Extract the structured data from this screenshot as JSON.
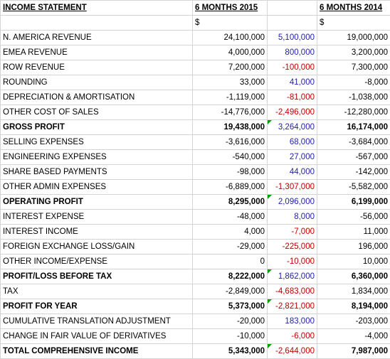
{
  "header": {
    "title": "INCOME STATEMENT",
    "col_2015": "6 MONTHS 2015",
    "col_2014": "6 MONTHS 2014",
    "currency_2015": "$",
    "currency_2014": "$"
  },
  "rows": [
    {
      "label": "N. AMERICA REVENUE",
      "v2015": "24,100,000",
      "adj": "5,100,000",
      "adj_sign": "pos",
      "v2014": "19,000,000",
      "bold": false,
      "flag": false
    },
    {
      "label": "EMEA REVENUE",
      "v2015": "4,000,000",
      "adj": "800,000",
      "adj_sign": "pos",
      "v2014": "3,200,000",
      "bold": false,
      "flag": false
    },
    {
      "label": "ROW REVENUE",
      "v2015": "7,200,000",
      "adj": "-100,000",
      "adj_sign": "neg",
      "v2014": "7,300,000",
      "bold": false,
      "flag": false
    },
    {
      "label": "ROUNDING",
      "v2015": "33,000",
      "adj": "41,000",
      "adj_sign": "pos",
      "v2014": "-8,000",
      "bold": false,
      "flag": false
    },
    {
      "label": "DEPRECIATION & AMORTISATION",
      "v2015": "-1,119,000",
      "adj": "-81,000",
      "adj_sign": "neg",
      "v2014": "-1,038,000",
      "bold": false,
      "flag": false
    },
    {
      "label": "OTHER COST OF SALES",
      "v2015": "-14,776,000",
      "adj": "-2,496,000",
      "adj_sign": "neg",
      "v2014": "-12,280,000",
      "bold": false,
      "flag": false
    },
    {
      "label": "GROSS PROFIT",
      "v2015": "19,438,000",
      "adj": "3,264,000",
      "adj_sign": "pos",
      "v2014": "16,174,000",
      "bold": true,
      "flag": true
    },
    {
      "label": "SELLING EXPENSES",
      "v2015": "-3,616,000",
      "adj": "68,000",
      "adj_sign": "pos",
      "v2014": "-3,684,000",
      "bold": false,
      "flag": false
    },
    {
      "label": "ENGINEERING EXPENSES",
      "v2015": "-540,000",
      "adj": "27,000",
      "adj_sign": "pos",
      "v2014": "-567,000",
      "bold": false,
      "flag": false
    },
    {
      "label": "SHARE BASED PAYMENTS",
      "v2015": "-98,000",
      "adj": "44,000",
      "adj_sign": "pos",
      "v2014": "-142,000",
      "bold": false,
      "flag": false
    },
    {
      "label": "OTHER ADMIN EXPENSES",
      "v2015": "-6,889,000",
      "adj": "-1,307,000",
      "adj_sign": "neg",
      "v2014": "-5,582,000",
      "bold": false,
      "flag": false
    },
    {
      "label": "OPERATING PROFIT",
      "v2015": "8,295,000",
      "adj": "2,096,000",
      "adj_sign": "pos",
      "v2014": "6,199,000",
      "bold": true,
      "flag": true
    },
    {
      "label": "INTEREST EXPENSE",
      "v2015": "-48,000",
      "adj": "8,000",
      "adj_sign": "pos",
      "v2014": "-56,000",
      "bold": false,
      "flag": false
    },
    {
      "label": "INTEREST INCOME",
      "v2015": "4,000",
      "adj": "-7,000",
      "adj_sign": "neg",
      "v2014": "11,000",
      "bold": false,
      "flag": false
    },
    {
      "label": "FOREIGN EXCHANGE LOSS/GAIN",
      "v2015": "-29,000",
      "adj": "-225,000",
      "adj_sign": "neg",
      "v2014": "196,000",
      "bold": false,
      "flag": false
    },
    {
      "label": "OTHER INCOME/EXPENSE",
      "v2015": "0",
      "adj": "-10,000",
      "adj_sign": "neg",
      "v2014": "10,000",
      "bold": false,
      "flag": false
    },
    {
      "label": "PROFIT/LOSS BEFORE TAX",
      "v2015": "8,222,000",
      "adj": "1,862,000",
      "adj_sign": "pos",
      "v2014": "6,360,000",
      "bold": true,
      "flag": true
    },
    {
      "label": "TAX",
      "v2015": "-2,849,000",
      "adj": "-4,683,000",
      "adj_sign": "neg",
      "v2014": "1,834,000",
      "bold": false,
      "flag": false
    },
    {
      "label": "PROFIT FOR YEAR",
      "v2015": "5,373,000",
      "adj": "-2,821,000",
      "adj_sign": "neg",
      "v2014": "8,194,000",
      "bold": true,
      "flag": true
    },
    {
      "label": "CUMULATIVE TRANSLATION ADJUSTMENT",
      "v2015": "-20,000",
      "adj": "183,000",
      "adj_sign": "pos",
      "v2014": "-203,000",
      "bold": false,
      "flag": false
    },
    {
      "label": "CHANGE IN FAIR VALUE OF DERIVATIVES",
      "v2015": "-10,000",
      "adj": "-6,000",
      "adj_sign": "neg",
      "v2014": "-4,000",
      "bold": false,
      "flag": false
    },
    {
      "label": "TOTAL COMPREHENSIVE INCOME",
      "v2015": "5,343,000",
      "adj": "-2,644,000",
      "adj_sign": "neg",
      "v2014": "7,987,000",
      "bold": true,
      "flag": true
    }
  ],
  "colors": {
    "positive_adj": "#1f1fa8",
    "negative_adj": "#c00000",
    "flag": "#00a000",
    "grid": "#d4d4d4"
  }
}
